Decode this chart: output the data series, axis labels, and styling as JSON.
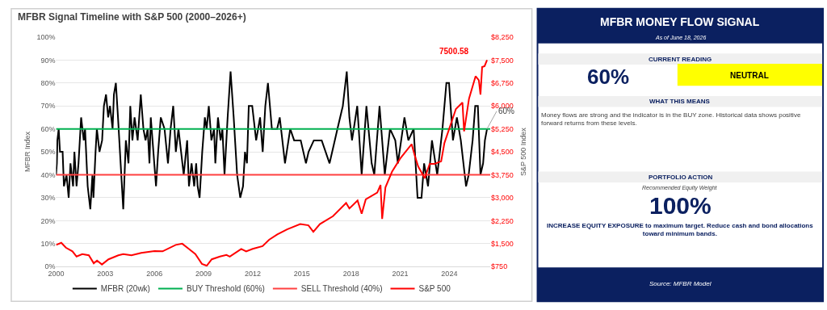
{
  "chart_data": [
    {
      "type": "line",
      "title": "MFBR Signal Timeline with S&P 500 (2000–2026+)",
      "ylabel": "MFBR Index",
      "y2label": "S&P 500 Index",
      "series": [
        {
          "name": "MFBR (20wk)",
          "color": "#000000",
          "x": [
            2000.0,
            2000.05,
            2000.08,
            2000.16,
            2000.24,
            2000.4,
            2000.48,
            2000.64,
            2000.77,
            2000.88,
            2001.04,
            2001.12,
            2001.25,
            2001.37,
            2001.53,
            2001.69,
            2001.77,
            2001.93,
            2002.09,
            2002.22,
            2002.28,
            2002.41,
            2002.49,
            2002.65,
            2002.81,
            2002.92,
            2003.05,
            2003.18,
            2003.29,
            2003.45,
            2003.53,
            2003.65,
            2003.78,
            2003.94,
            2004.1,
            2004.26,
            2004.42,
            2004.53,
            2004.66,
            2004.79,
            2004.98,
            2005.17,
            2005.33,
            2005.46,
            2005.59,
            2005.7,
            2005.78,
            2005.94,
            2006.1,
            2006.23,
            2006.39,
            2006.62,
            2006.83,
            2006.99,
            2007.15,
            2007.31,
            2007.47,
            2007.63,
            2007.79,
            2008.0,
            2008.11,
            2008.27,
            2008.43,
            2008.55,
            2008.64,
            2008.76,
            2008.92,
            2009.08,
            2009.19,
            2009.32,
            2009.48,
            2009.64,
            2009.72,
            2009.88,
            2010.04,
            2010.15,
            2010.28,
            2010.47,
            2010.65,
            2010.84,
            2011.05,
            2011.24,
            2011.41,
            2011.53,
            2011.65,
            2011.76,
            2011.97,
            2012.21,
            2012.45,
            2012.61,
            2012.77,
            2012.93,
            2013.17,
            2013.49,
            2013.65,
            2013.97,
            2014.29,
            2014.53,
            2014.93,
            2015.25,
            2015.41,
            2015.73,
            2016.21,
            2016.69,
            2017.17,
            2017.5,
            2017.74,
            2017.9,
            2018.06,
            2018.38,
            2018.65,
            2018.94,
            2019.26,
            2019.42,
            2019.74,
            2020.06,
            2020.38,
            2020.7,
            2020.86,
            2021.26,
            2021.5,
            2021.82,
            2022.06,
            2022.3,
            2022.46,
            2022.7,
            2022.94,
            2023.26,
            2023.58,
            2023.82,
            2023.98,
            2024.22,
            2024.46,
            2024.7,
            2024.94,
            2025.02,
            2025.18,
            2025.42,
            2025.58,
            2025.74,
            2025.9,
            2026.06,
            2026.17,
            2026.3
          ],
          "values": [
            40,
            45,
            55,
            60,
            50,
            50,
            35,
            40,
            30,
            45,
            35,
            50,
            35,
            45,
            65,
            55,
            60,
            35,
            25,
            40,
            30,
            50,
            60,
            50,
            55,
            70,
            75,
            65,
            70,
            60,
            75,
            80,
            65,
            45,
            25,
            55,
            45,
            70,
            55,
            65,
            55,
            75,
            60,
            55,
            60,
            45,
            65,
            50,
            35,
            50,
            65,
            60,
            45,
            60,
            70,
            50,
            60,
            50,
            40,
            55,
            35,
            45,
            35,
            45,
            35,
            30,
            50,
            65,
            60,
            70,
            55,
            60,
            45,
            65,
            55,
            60,
            40,
            65,
            85,
            65,
            40,
            30,
            35,
            50,
            45,
            70,
            70,
            55,
            65,
            50,
            70,
            80,
            60,
            60,
            65,
            45,
            60,
            55,
            55,
            45,
            50,
            55,
            55,
            45,
            60,
            70,
            85,
            65,
            55,
            70,
            40,
            70,
            45,
            40,
            70,
            40,
            60,
            55,
            45,
            65,
            55,
            60,
            30,
            30,
            45,
            35,
            55,
            40,
            60,
            80,
            80,
            55,
            65,
            55,
            40,
            35,
            40,
            55,
            70,
            70,
            40,
            45,
            55,
            60
          ]
        },
        {
          "name": "S&P 500",
          "color": "#ff0000",
          "axis": "y2",
          "x": [
            2000.0,
            2000.32,
            2000.6,
            2001.0,
            2001.25,
            2001.6,
            2002.0,
            2002.3,
            2002.5,
            2002.8,
            2003.2,
            2003.8,
            2004.1,
            2004.6,
            2005.2,
            2006.0,
            2006.5,
            2007.3,
            2007.7,
            2008.1,
            2008.5,
            2008.9,
            2009.2,
            2009.5,
            2010.0,
            2010.4,
            2010.6,
            2011.3,
            2011.6,
            2012.0,
            2012.6,
            2013.0,
            2013.5,
            2014.1,
            2014.9,
            2015.4,
            2015.7,
            2016.1,
            2016.9,
            2017.7,
            2017.9,
            2018.4,
            2018.65,
            2018.9,
            2019.6,
            2019.8,
            2019.9,
            2020.1,
            2020.5,
            2021.0,
            2021.7,
            2021.9,
            2022.1,
            2022.5,
            2022.8,
            2023.1,
            2023.5,
            2023.7,
            2024.4,
            2024.8,
            2024.9,
            2025.2,
            2025.6,
            2025.8,
            2025.9,
            2026.0,
            2026.15,
            2026.3
          ],
          "values": [
            1460,
            1530,
            1370,
            1250,
            1080,
            1160,
            1120,
            860,
            950,
            820,
            990,
            1120,
            1160,
            1120,
            1200,
            1260,
            1250,
            1460,
            1500,
            1330,
            1160,
            840,
            780,
            990,
            1080,
            1130,
            1080,
            1330,
            1250,
            1330,
            1420,
            1630,
            1800,
            1970,
            2140,
            2100,
            1890,
            2140,
            2400,
            2830,
            2650,
            2910,
            2480,
            2950,
            3170,
            3420,
            2310,
            3340,
            3850,
            4280,
            4750,
            4360,
            4020,
            3640,
            4110,
            4110,
            4190,
            4790,
            5900,
            6110,
            5170,
            6240,
            6970,
            6840,
            6370,
            7270,
            7300,
            7500
          ]
        }
      ],
      "ref_lines": [
        {
          "axis": "y",
          "value": 60,
          "label": "BUY Threshold (60%)",
          "color": "#00b050"
        },
        {
          "axis": "y",
          "value": 40,
          "label": "SELL Threshold (40%)",
          "color": "#ff4040"
        }
      ],
      "xlim": [
        2000,
        2026.5
      ],
      "xticks": [
        2000,
        2003,
        2006,
        2009,
        2012,
        2015,
        2018,
        2021,
        2024
      ],
      "ylim": [
        0,
        100
      ],
      "yticks": [
        {
          "value": 0,
          "label": "0%"
        },
        {
          "value": 10,
          "label": "10%"
        },
        {
          "value": 20,
          "label": "20%"
        },
        {
          "value": 30,
          "label": "30%"
        },
        {
          "value": 40,
          "label": "40%"
        },
        {
          "value": 50,
          "label": "50%"
        },
        {
          "value": 60,
          "label": "60%"
        },
        {
          "value": 70,
          "label": "70%"
        },
        {
          "value": 80,
          "label": "80%"
        },
        {
          "value": 90,
          "label": "90%"
        },
        {
          "value": 100,
          "label": "100%"
        }
      ],
      "y2lim": [
        750,
        8250
      ],
      "y2ticks": [
        {
          "value": 750,
          "label": "$750"
        },
        {
          "value": 1500,
          "label": "$1,500"
        },
        {
          "value": 2250,
          "label": "$2,250"
        },
        {
          "value": 3000,
          "label": "$3,000"
        },
        {
          "value": 3750,
          "label": "$3,750"
        },
        {
          "value": 4500,
          "label": "$4,500"
        },
        {
          "value": 5250,
          "label": "$5,250"
        },
        {
          "value": 6000,
          "label": "$6,000"
        },
        {
          "value": 6750,
          "label": "$6,750"
        },
        {
          "value": 7500,
          "label": "$7,500"
        },
        {
          "value": 8250,
          "label": "$8,250"
        }
      ],
      "grid": "y",
      "legend": "bottom",
      "annotations": [
        {
          "text": "60%",
          "x": 2026.3,
          "y": 60
        },
        "7500.58"
      ]
    },
    {
      "type": "other",
      "title": "MFBR MONEY FLOW SIGNAL",
      "subtitle": "As of June 18, 2026",
      "annotations": [
        "CURRENT READING",
        "60%",
        "NEUTRAL",
        "WHAT THIS MEANS",
        "Money flows are strong and the indicator is in the BUY zone. Historical data shows positive forward returns from these levels.",
        "PORTFOLIO ACTION",
        "Recommended Equity Weight",
        "100%",
        "INCREASE EQUITY EXPOSURE to maximum target. Reduce cash and bond allocations toward minimum bands.",
        "Source: MFBR Model"
      ]
    }
  ]
}
